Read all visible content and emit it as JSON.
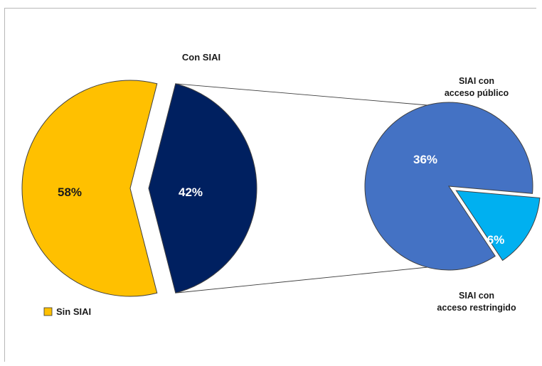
{
  "chart_data": {
    "type": "pie",
    "main_pie": {
      "slices": [
        {
          "name": "Sin SIAI",
          "value": 58,
          "label": "58%",
          "color": "#FFC000"
        },
        {
          "name": "Con SIAI",
          "value": 42,
          "label": "42%",
          "color": "#002060"
        }
      ]
    },
    "sub_pie": {
      "of_slice": "Con SIAI",
      "slices": [
        {
          "name": "SIAI con acceso público",
          "value": 36,
          "label": "36%",
          "color": "#4472C4"
        },
        {
          "name": "SIAI con acceso restringido",
          "value": 6,
          "label": "6%",
          "color": "#00B0F0"
        }
      ]
    },
    "category_labels": {
      "con_siai": "Con SIAI",
      "publico": [
        "SIAI con",
        "acceso público"
      ],
      "restringido": [
        "SIAI con",
        "acceso restringido"
      ]
    },
    "legend": {
      "position": "bottom-left",
      "entries": [
        {
          "name": "Sin SIAI",
          "color": "#FFC000"
        }
      ]
    }
  }
}
